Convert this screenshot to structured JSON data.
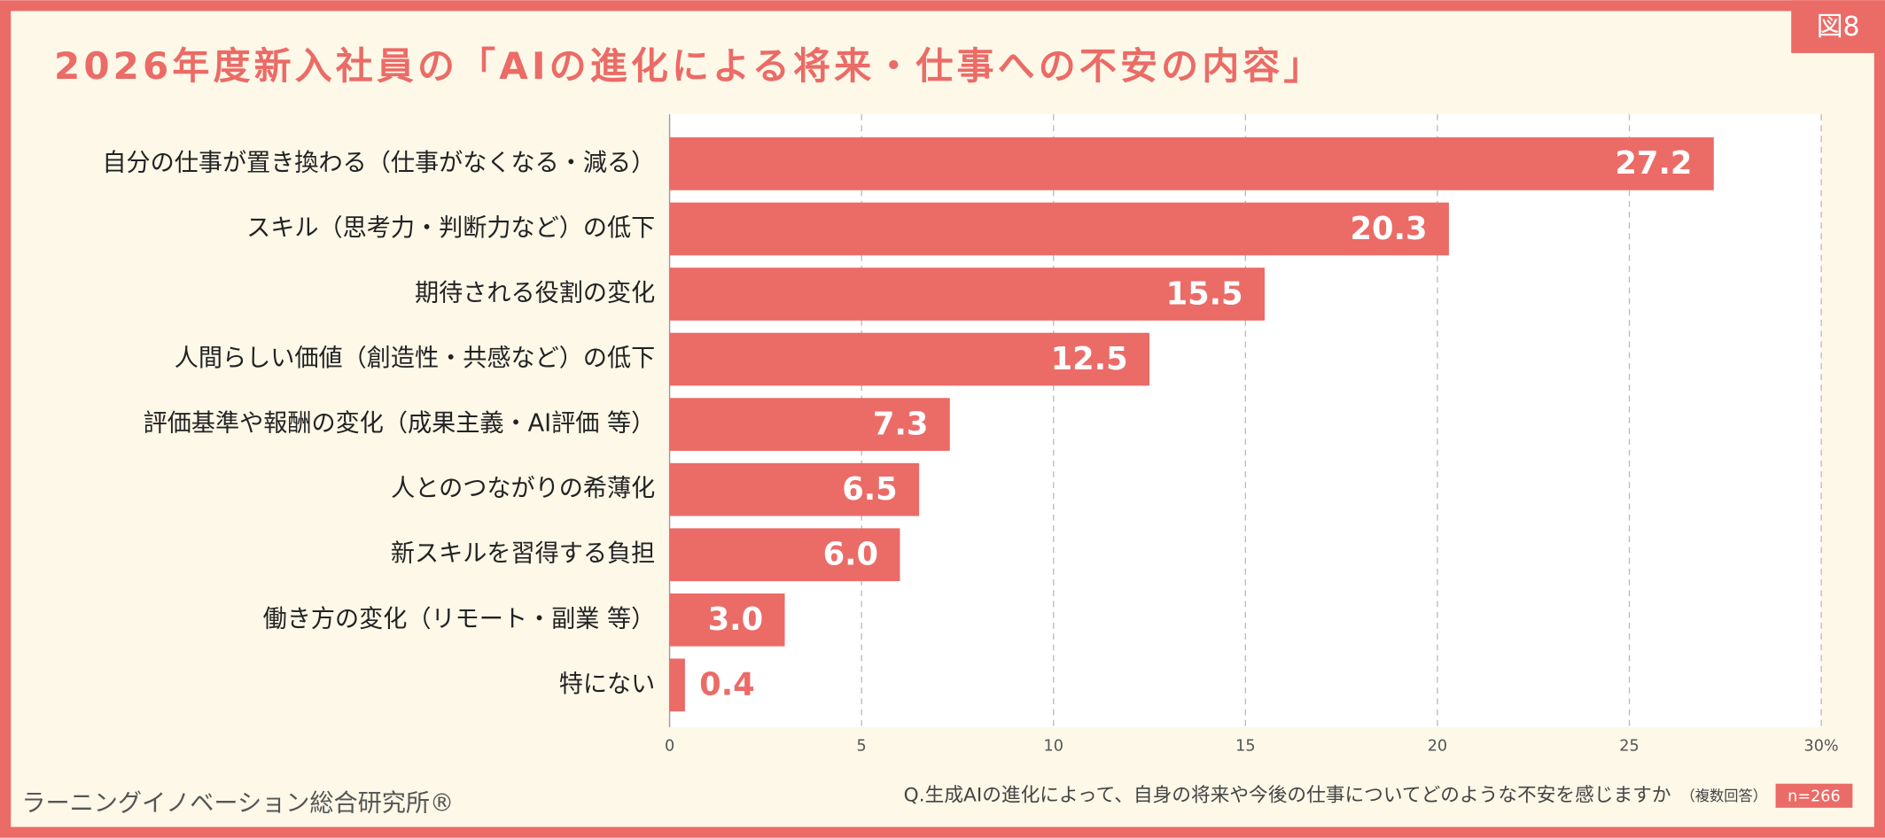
{
  "badge": "図8",
  "chart_data": {
    "type": "bar",
    "orientation": "horizontal",
    "title": "2026年度新入社員の「AIの進化による将来・仕事への不安の内容」",
    "categories": [
      "自分の仕事が置き換わる（仕事がなくなる・減る）",
      "スキル（思考力・判断力など）の低下",
      "期待される役割の変化",
      "人間らしい価値（創造性・共感など）の低下",
      "評価基準や報酬の変化（成果主義・AI評価 等）",
      "人とのつながりの希薄化",
      "新スキルを習得する負担",
      "働き方の変化（リモート・副業 等）",
      "特にない"
    ],
    "values": [
      27.2,
      20.3,
      15.5,
      12.5,
      7.3,
      6.5,
      6.0,
      3.0,
      0.4
    ],
    "value_labels": [
      "27.2",
      "20.3",
      "15.5",
      "12.5",
      "7.3",
      "6.5",
      "6.0",
      "3.0",
      "0.4"
    ],
    "color": "#eb6b67",
    "xlim": [
      0,
      30
    ],
    "xticks": [
      0,
      5,
      10,
      15,
      20,
      25,
      {
        "value": 30,
        "label": "30%"
      }
    ],
    "grid": true
  },
  "footer": {
    "source": "ラーニングイノベーション総合研究所®",
    "question": "Q.生成AIの進化によって、自身の将来や今後の仕事についてどのような不安を感じますか",
    "note": "（複数回答）",
    "n": "n=266"
  }
}
